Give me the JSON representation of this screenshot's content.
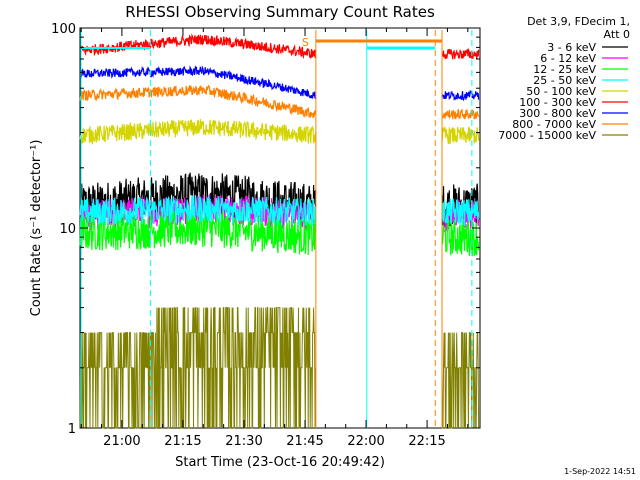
{
  "chart_data": {
    "type": "line",
    "title": "RHESSI Observing Summary Count Rates",
    "xlabel": "Start Time (23-Oct-16 20:49:42)",
    "ylabel": "Count Rate (s⁻¹ detector⁻¹)",
    "yscale": "log",
    "ylim": [
      1,
      100
    ],
    "xlim": [
      "20:49:42",
      "22:28:00"
    ],
    "x_ticks": [
      "21:00",
      "21:15",
      "21:30",
      "21:45",
      "22:00",
      "22:15"
    ],
    "y_ticks": [
      "1",
      "10",
      "100"
    ],
    "legend_header": [
      "Det 3,9, FDecim 1,",
      "Att 0"
    ],
    "legend_position": "right",
    "footer_date": "1-Sep-2022 14:51",
    "marker_label": "S",
    "series": [
      {
        "name": "3 - 6 keV",
        "color": "#000000",
        "level_start": 13,
        "level_peak": 15,
        "level_end": 13
      },
      {
        "name": "6 - 12 keV",
        "color": "#ff00ff",
        "level_start": 11.5,
        "level_peak": 12.5,
        "level_end": 11.5
      },
      {
        "name": "12 - 25 keV",
        "color": "#00ff00",
        "level_start": 9.5,
        "level_peak": 10,
        "level_end": 9
      },
      {
        "name": "25 - 50 keV",
        "color": "#00ffff",
        "level_start": 12,
        "level_peak": 12.5,
        "level_end": 12
      },
      {
        "name": "50 - 100 keV",
        "color": "#d4d400",
        "level_start": 29,
        "level_peak": 32,
        "level_end": 29
      },
      {
        "name": "100 - 300 keV",
        "color": "#ff0000",
        "level_start": 77,
        "level_peak": 88,
        "level_end": 74
      },
      {
        "name": "300 - 800 keV",
        "color": "#0000ff",
        "level_start": 59,
        "level_peak": 61,
        "level_end": 46
      },
      {
        "name": "800 - 7000 keV",
        "color": "#ff8000",
        "level_start": 46,
        "level_peak": 49,
        "level_end": 37
      },
      {
        "name": "7000 - 15000 keV",
        "color": "#808000",
        "level_start": 2,
        "level_peak": 4,
        "level_end": 2.5
      }
    ],
    "vertical_markers": [
      {
        "time": "22:00:10",
        "color": "#00ffff",
        "style": "solid"
      },
      {
        "time": "22:17:00",
        "color": "#ff8000",
        "style": "dashed"
      },
      {
        "time": "22:26:00",
        "color": "#00ffff",
        "style": "dashed"
      }
    ],
    "data_gap": [
      "21:47:40",
      "22:18:40"
    ]
  }
}
